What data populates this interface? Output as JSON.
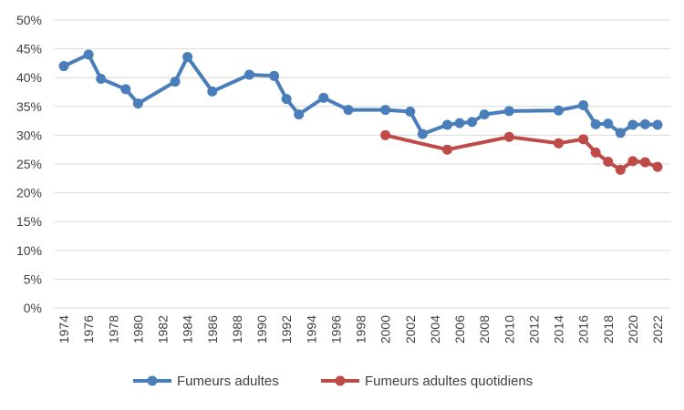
{
  "chart_data": {
    "type": "line",
    "title": "",
    "xlabel": "",
    "ylabel": "",
    "xlim": [
      1974,
      2022
    ],
    "ylim": [
      0,
      50
    ],
    "y_unit": "%",
    "y_ticks": [
      0,
      5,
      10,
      15,
      20,
      25,
      30,
      35,
      40,
      45,
      50
    ],
    "y_tick_labels": [
      "0%",
      "5%",
      "10%",
      "15%",
      "20%",
      "25%",
      "30%",
      "35%",
      "40%",
      "45%",
      "50%"
    ],
    "x_ticks": [
      1974,
      1976,
      1978,
      1980,
      1982,
      1984,
      1986,
      1988,
      1990,
      1992,
      1994,
      1996,
      1998,
      2000,
      2002,
      2004,
      2006,
      2008,
      2010,
      2012,
      2014,
      2016,
      2018,
      2020,
      2022
    ],
    "x_tick_labels": [
      "1974",
      "1976",
      "1978",
      "1980",
      "1982",
      "1984",
      "1986",
      "1988",
      "1990",
      "1992",
      "1994",
      "1996",
      "1998",
      "2000",
      "2002",
      "2004",
      "2006",
      "2008",
      "2010",
      "2012",
      "2014",
      "2016",
      "2018",
      "2020",
      "2022"
    ],
    "grid": "horizontal",
    "legend_position": "bottom",
    "series": [
      {
        "name": "Fumeurs adultes",
        "color": "#4a7ebb",
        "points": [
          [
            1974,
            42.0
          ],
          [
            1976,
            44.0
          ],
          [
            1977,
            39.8
          ],
          [
            1979,
            38.0
          ],
          [
            1980,
            35.5
          ],
          [
            1983,
            39.3
          ],
          [
            1984,
            43.6
          ],
          [
            1986,
            37.6
          ],
          [
            1989,
            40.5
          ],
          [
            1991,
            40.3
          ],
          [
            1992,
            36.3
          ],
          [
            1993,
            33.6
          ],
          [
            1995,
            36.5
          ],
          [
            1997,
            34.4
          ],
          [
            2000,
            34.4
          ],
          [
            2002,
            34.1
          ],
          [
            2003,
            30.2
          ],
          [
            2005,
            31.8
          ],
          [
            2006,
            32.1
          ],
          [
            2007,
            32.3
          ],
          [
            2008,
            33.6
          ],
          [
            2010,
            34.2
          ],
          [
            2014,
            34.3
          ],
          [
            2016,
            35.2
          ],
          [
            2017,
            31.9
          ],
          [
            2018,
            32.0
          ],
          [
            2019,
            30.4
          ],
          [
            2020,
            31.8
          ],
          [
            2021,
            31.9
          ],
          [
            2022,
            31.8
          ]
        ]
      },
      {
        "name": "Fumeurs adultes quotidiens",
        "color": "#be4b48",
        "points": [
          [
            2000,
            30.0
          ],
          [
            2005,
            27.5
          ],
          [
            2010,
            29.7
          ],
          [
            2014,
            28.6
          ],
          [
            2016,
            29.3
          ],
          [
            2017,
            27.0
          ],
          [
            2018,
            25.4
          ],
          [
            2019,
            24.0
          ],
          [
            2020,
            25.5
          ],
          [
            2021,
            25.3
          ],
          [
            2022,
            24.5
          ]
        ]
      }
    ]
  }
}
